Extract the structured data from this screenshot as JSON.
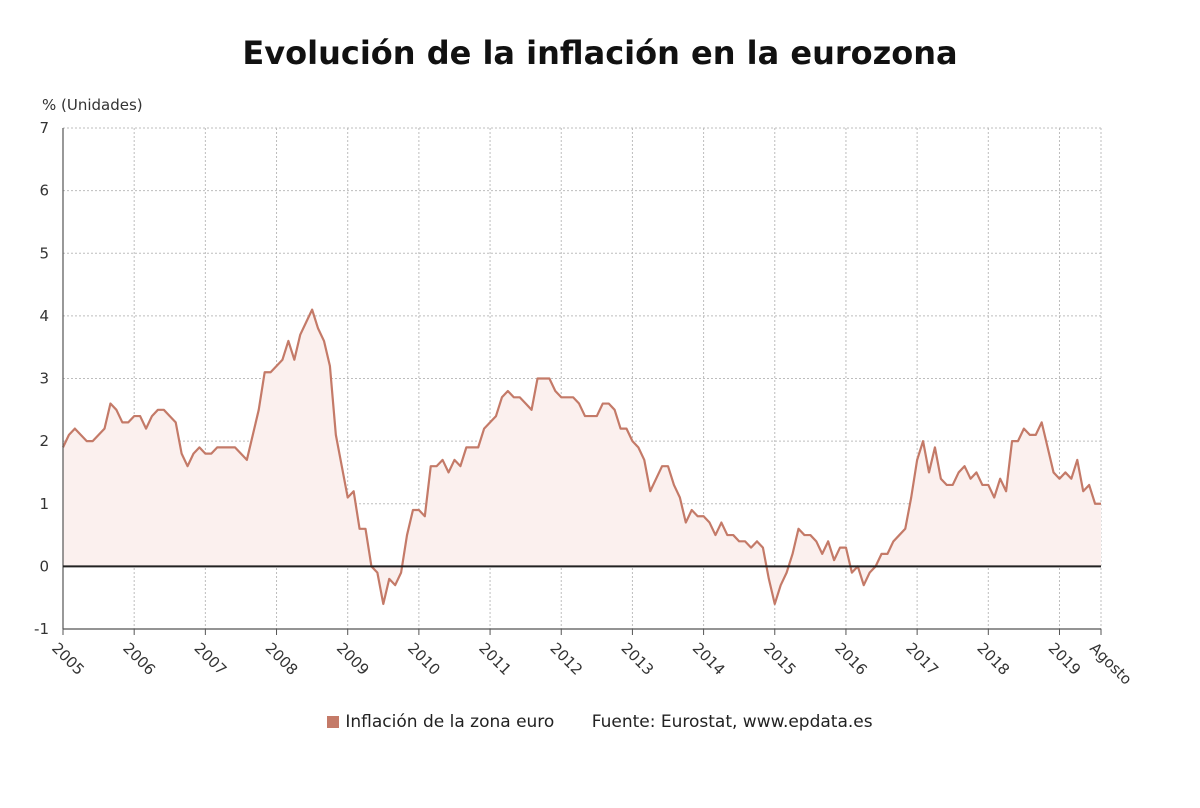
{
  "chart_data": {
    "type": "area",
    "title": "Evolución de la inflación en la eurozona",
    "ylabel": "% (Unidades)",
    "ylim": [
      -1,
      7
    ],
    "yticks": [
      "7",
      "6",
      "5",
      "4",
      "3",
      "2",
      "1",
      "0",
      "-1"
    ],
    "x_tick_labels": [
      "2005",
      "2006",
      "2007",
      "2008",
      "2009",
      "2010",
      "2011",
      "2012",
      "2013",
      "2014",
      "2015",
      "2016",
      "2017",
      "2018",
      "2019",
      "Agosto"
    ],
    "x_start": "2005-01",
    "x_end": "2019-08",
    "grid": true,
    "line_color": "#c47a68",
    "fill_color": "#fbf0ee",
    "zero_line_color": "#222222",
    "series": [
      {
        "name": "Inflación de la zona euro",
        "values": [
          1.9,
          2.1,
          2.2,
          2.1,
          2.0,
          2.0,
          2.1,
          2.2,
          2.6,
          2.5,
          2.3,
          2.3,
          2.4,
          2.4,
          2.2,
          2.4,
          2.5,
          2.5,
          2.4,
          2.3,
          1.8,
          1.6,
          1.8,
          1.9,
          1.8,
          1.8,
          1.9,
          1.9,
          1.9,
          1.9,
          1.8,
          1.7,
          2.1,
          2.5,
          3.1,
          3.1,
          3.2,
          3.3,
          3.6,
          3.3,
          3.7,
          3.9,
          4.1,
          3.8,
          3.6,
          3.2,
          2.1,
          1.6,
          1.1,
          1.2,
          0.6,
          0.6,
          0.0,
          -0.1,
          -0.6,
          -0.2,
          -0.3,
          -0.1,
          0.5,
          0.9,
          0.9,
          0.8,
          1.6,
          1.6,
          1.7,
          1.5,
          1.7,
          1.6,
          1.9,
          1.9,
          1.9,
          2.2,
          2.3,
          2.4,
          2.7,
          2.8,
          2.7,
          2.7,
          2.6,
          2.5,
          3.0,
          3.0,
          3.0,
          2.8,
          2.7,
          2.7,
          2.7,
          2.6,
          2.4,
          2.4,
          2.4,
          2.6,
          2.6,
          2.5,
          2.2,
          2.2,
          2.0,
          1.9,
          1.7,
          1.2,
          1.4,
          1.6,
          1.6,
          1.3,
          1.1,
          0.7,
          0.9,
          0.8,
          0.8,
          0.7,
          0.5,
          0.7,
          0.5,
          0.5,
          0.4,
          0.4,
          0.3,
          0.4,
          0.3,
          -0.2,
          -0.6,
          -0.3,
          -0.1,
          0.2,
          0.6,
          0.5,
          0.5,
          0.4,
          0.2,
          0.4,
          0.1,
          0.3,
          0.3,
          -0.1,
          0.0,
          -0.3,
          -0.1,
          0.0,
          0.2,
          0.2,
          0.4,
          0.5,
          0.6,
          1.1,
          1.7,
          2.0,
          1.5,
          1.9,
          1.4,
          1.3,
          1.3,
          1.5,
          1.6,
          1.4,
          1.5,
          1.3,
          1.3,
          1.1,
          1.4,
          1.2,
          2.0,
          2.0,
          2.2,
          2.1,
          2.1,
          2.3,
          1.9,
          1.5,
          1.4,
          1.5,
          1.4,
          1.7,
          1.2,
          1.3,
          1.0,
          1.0
        ]
      }
    ]
  },
  "legend": {
    "series_label": "Inflación de la zona euro",
    "source": "Fuente: Eurostat, www.epdata.es"
  }
}
